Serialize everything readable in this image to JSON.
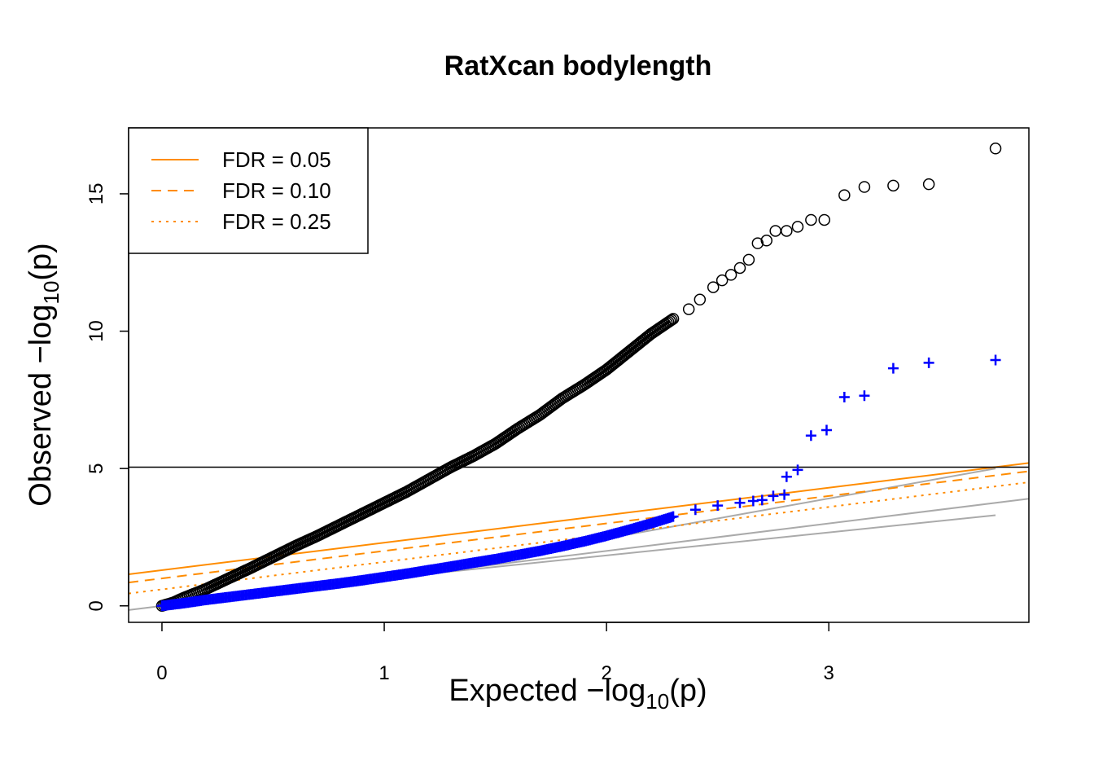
{
  "chart_data": {
    "type": "scatter",
    "title": "RatXcan bodylength",
    "xlabel": {
      "prefix": "Expected  −log",
      "sub": "10",
      "suffix": "(p)"
    },
    "ylabel": {
      "prefix": "Observed  −log",
      "sub": "10",
      "suffix": "(p)"
    },
    "xlim": [
      -0.15,
      3.9
    ],
    "ylim": [
      -0.6,
      17.4
    ],
    "x_ticks": [
      0,
      1,
      2,
      3
    ],
    "x_tick_labels": [
      "0",
      "1",
      "2",
      "3"
    ],
    "y_ticks": [
      0,
      5,
      10,
      15
    ],
    "y_tick_labels": [
      "0",
      "5",
      "10",
      "15"
    ],
    "significance_threshold": 5.05,
    "legend": {
      "placement": "top-left",
      "entries": [
        {
          "label": "FDR = 0.05",
          "style": "solid",
          "color": "#FF8C00"
        },
        {
          "label": "FDR = 0.10",
          "style": "dashed",
          "color": "#FF8C00"
        },
        {
          "label": "FDR = 0.25",
          "style": "dotted",
          "color": "#FF8C00"
        }
      ]
    },
    "fdr_lines": [
      {
        "name": "FDR = 0.05",
        "style": "solid",
        "x": [
          -0.15,
          3.9
        ],
        "y": [
          1.15,
          5.2
        ]
      },
      {
        "name": "FDR = 0.10",
        "style": "dashed",
        "x": [
          -0.15,
          3.9
        ],
        "y": [
          0.85,
          4.9
        ]
      },
      {
        "name": "FDR = 0.25",
        "style": "dotted",
        "x": [
          -0.15,
          3.9
        ],
        "y": [
          0.45,
          4.5
        ]
      }
    ],
    "reference_lines": [
      {
        "x": [
          -0.15,
          3.9
        ],
        "y": [
          -0.15,
          3.9
        ]
      },
      {
        "x": [
          1.0,
          3.75
        ],
        "y": [
          1.0,
          5.0
        ]
      },
      {
        "x": [
          1.0,
          3.75
        ],
        "y": [
          1.0,
          3.3
        ]
      }
    ],
    "series": [
      {
        "marker": "open-circle",
        "color": "#000000",
        "points": [
          [
            0.0,
            0.0
          ],
          [
            0.05,
            0.12
          ],
          [
            0.1,
            0.3
          ],
          [
            0.2,
            0.62
          ],
          [
            0.3,
            1.0
          ],
          [
            0.4,
            1.38
          ],
          [
            0.5,
            1.78
          ],
          [
            0.6,
            2.18
          ],
          [
            0.7,
            2.55
          ],
          [
            0.8,
            2.95
          ],
          [
            0.9,
            3.35
          ],
          [
            1.0,
            3.75
          ],
          [
            1.1,
            4.15
          ],
          [
            1.2,
            4.6
          ],
          [
            1.3,
            5.05
          ],
          [
            1.4,
            5.45
          ],
          [
            1.5,
            5.9
          ],
          [
            1.6,
            6.45
          ],
          [
            1.7,
            6.95
          ],
          [
            1.8,
            7.55
          ],
          [
            1.9,
            8.05
          ],
          [
            2.0,
            8.6
          ],
          [
            2.1,
            9.25
          ],
          [
            2.2,
            9.9
          ],
          [
            2.3,
            10.45
          ],
          [
            2.37,
            10.8
          ],
          [
            2.42,
            11.15
          ],
          [
            2.48,
            11.6
          ],
          [
            2.52,
            11.85
          ],
          [
            2.56,
            12.05
          ],
          [
            2.6,
            12.3
          ],
          [
            2.64,
            12.6
          ],
          [
            2.68,
            13.2
          ],
          [
            2.72,
            13.3
          ],
          [
            2.76,
            13.65
          ],
          [
            2.81,
            13.65
          ],
          [
            2.86,
            13.8
          ],
          [
            2.92,
            14.05
          ],
          [
            2.98,
            14.05
          ],
          [
            3.07,
            14.95
          ],
          [
            3.16,
            15.25
          ],
          [
            3.29,
            15.3
          ],
          [
            3.45,
            15.35
          ],
          [
            3.75,
            16.65
          ]
        ]
      },
      {
        "marker": "plus",
        "color": "#0000FF",
        "points": [
          [
            0.0,
            0.0
          ],
          [
            0.1,
            0.1
          ],
          [
            0.2,
            0.22
          ],
          [
            0.3,
            0.32
          ],
          [
            0.4,
            0.42
          ],
          [
            0.5,
            0.52
          ],
          [
            0.6,
            0.62
          ],
          [
            0.7,
            0.72
          ],
          [
            0.8,
            0.82
          ],
          [
            0.9,
            0.93
          ],
          [
            1.0,
            1.05
          ],
          [
            1.1,
            1.17
          ],
          [
            1.2,
            1.3
          ],
          [
            1.3,
            1.43
          ],
          [
            1.4,
            1.57
          ],
          [
            1.5,
            1.7
          ],
          [
            1.6,
            1.85
          ],
          [
            1.7,
            2.0
          ],
          [
            1.8,
            2.17
          ],
          [
            1.9,
            2.35
          ],
          [
            2.0,
            2.55
          ],
          [
            2.1,
            2.77
          ],
          [
            2.2,
            3.0
          ],
          [
            2.3,
            3.25
          ],
          [
            2.4,
            3.5
          ],
          [
            2.5,
            3.65
          ],
          [
            2.6,
            3.75
          ],
          [
            2.66,
            3.82
          ],
          [
            2.7,
            3.85
          ],
          [
            2.75,
            4.0
          ],
          [
            2.8,
            4.05
          ],
          [
            2.81,
            4.7
          ],
          [
            2.86,
            4.95
          ],
          [
            2.92,
            6.2
          ],
          [
            2.99,
            6.4
          ],
          [
            3.07,
            7.6
          ],
          [
            3.16,
            7.65
          ],
          [
            3.29,
            8.65
          ],
          [
            3.45,
            8.85
          ],
          [
            3.75,
            8.95
          ]
        ]
      }
    ]
  }
}
